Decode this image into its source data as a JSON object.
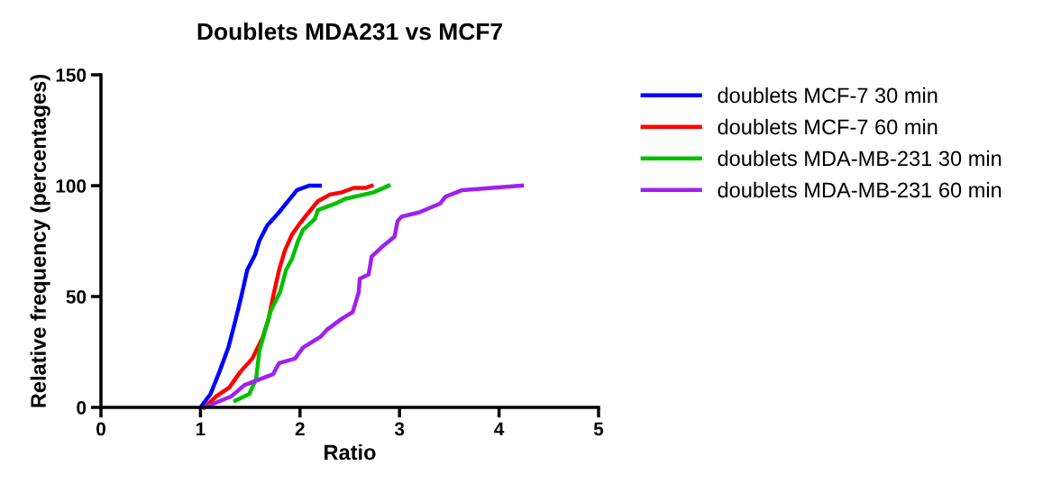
{
  "chart_data": {
    "type": "line",
    "title": "Doublets MDA231 vs MCF7",
    "xlabel": "Ratio",
    "ylabel": "Relative frequency (percentages)",
    "xlim": [
      0,
      5
    ],
    "xticks": [
      0,
      1,
      2,
      3,
      4,
      5
    ],
    "ylim": [
      0,
      150
    ],
    "yticks": [
      0,
      50,
      100,
      150
    ],
    "grid": false,
    "legend": "right",
    "marker": "none",
    "line_style": "solid",
    "series": [
      {
        "name": "doublets MCF-7 30 min",
        "color": "#0000ff",
        "x": [
          1.0,
          1.1,
          1.19,
          1.28,
          1.35,
          1.41,
          1.47,
          1.55,
          1.59,
          1.67,
          1.79,
          1.88,
          1.97,
          2.09,
          2.2
        ],
        "values": [
          0,
          6,
          16,
          27,
          39,
          50,
          62,
          69,
          75,
          82,
          88,
          93,
          98,
          100,
          100
        ]
      },
      {
        "name": "doublets MCF-7 60 min",
        "color": "#ff0000",
        "x": [
          1.04,
          1.16,
          1.29,
          1.4,
          1.52,
          1.62,
          1.68,
          1.73,
          1.79,
          1.85,
          1.92,
          2.0,
          2.07,
          2.18,
          2.3,
          2.42,
          2.54,
          2.66,
          2.72
        ],
        "values": [
          0,
          5,
          9,
          16,
          22,
          31,
          39,
          50,
          62,
          71,
          78,
          83,
          87,
          93,
          96,
          97,
          99,
          99,
          100
        ]
      },
      {
        "name": "doublets MDA-MB-231 30 min",
        "color": "#00c000",
        "x": [
          1.35,
          1.49,
          1.56,
          1.59,
          1.65,
          1.71,
          1.8,
          1.86,
          1.92,
          1.98,
          2.03,
          2.15,
          2.18,
          2.36,
          2.45,
          2.74,
          2.89
        ],
        "values": [
          3,
          6,
          13,
          25,
          35,
          44,
          52,
          62,
          67,
          75,
          80,
          85,
          89,
          92,
          94,
          97,
          100
        ]
      },
      {
        "name": "doublets MDA-MB-231 60 min",
        "color": "#a020f0",
        "x": [
          1.04,
          1.31,
          1.44,
          1.73,
          1.79,
          1.95,
          2.03,
          2.21,
          2.27,
          2.42,
          2.53,
          2.59,
          2.6,
          2.69,
          2.72,
          2.84,
          2.95,
          2.98,
          3.02,
          3.2,
          3.41,
          3.46,
          3.63,
          4.23
        ],
        "values": [
          0,
          5,
          10,
          15,
          20,
          22,
          27,
          32,
          35,
          40,
          43,
          52,
          58,
          60,
          68,
          73,
          77,
          84,
          86,
          88,
          92,
          95,
          98,
          100
        ]
      }
    ]
  }
}
